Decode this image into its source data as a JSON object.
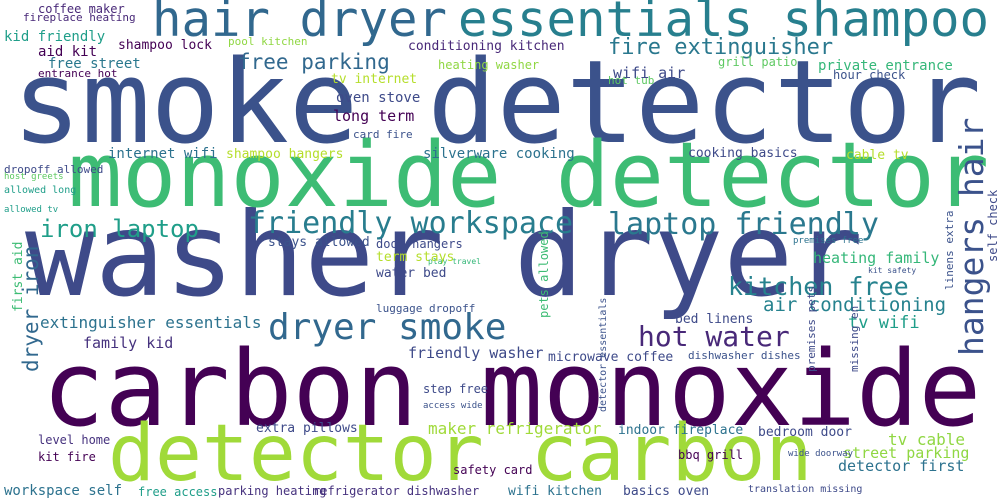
{
  "words": [
    "smoke detector",
    "carbon monoxide",
    "washer dryer",
    "monoxide detector",
    "detector carbon",
    "hair dryer",
    "essentials shampoo",
    "hangers hair",
    "laptop friendly",
    "friendly workspace",
    "dryer smoke",
    "hot water",
    "kitchen free",
    "iron laptop",
    "dryer iron",
    "fire extinguisher",
    "free parking",
    "air conditioning",
    "heating family",
    "tv wifi",
    "street parking",
    "detector first",
    "tv cable",
    "maker refrigerator",
    "friendly washer",
    "extinguisher essentials",
    "family kid",
    "silverware cooking",
    "internet wifi",
    "shampoo hangers",
    "cooking basics",
    "cable tv",
    "long term",
    "oven stove",
    "tv internet",
    "conditioning kitchen",
    "heating washer",
    "wifi air",
    "private entrance",
    "grill patio",
    "hour check",
    "kid friendly",
    "aid kit",
    "shampoo lock",
    "coffee maker",
    "fireplace heating",
    "free street",
    "entrance hot",
    "pool kitchen",
    "card fire",
    "water bed",
    "term stays",
    "stays allowed",
    "door hangers",
    "first aid",
    "bed linens",
    "microwave coffee",
    "dishwasher dishes",
    "indoor fireplace",
    "bedroom door",
    "bbq grill",
    "wide doorway",
    "extra pillows",
    "level home",
    "kit fire",
    "workspace self",
    "free access",
    "parking heating",
    "refrigerator dishwasher",
    "wifi kitchen",
    "basics oven",
    "safety card",
    "step free",
    "access wide",
    "translation missing",
    "dropoff allowed",
    "allowed long",
    "host greets",
    "allowed tv",
    "luggage dropoff",
    "play travel",
    "hot tub",
    "self check",
    "linens extra",
    "premises free",
    "kit safety",
    "pets allowed",
    "detector essentials",
    "missing en",
    "premises pets"
  ]
}
